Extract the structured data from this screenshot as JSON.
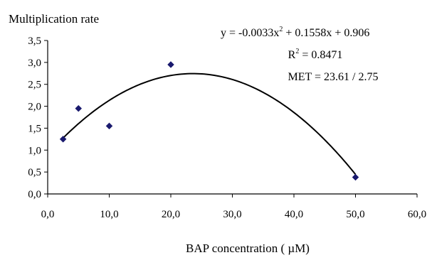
{
  "chart_data": {
    "type": "scatter",
    "ylabel": "Multiplication rate",
    "xlabel": "BAP concentration ( µM)",
    "xlim": [
      0,
      60
    ],
    "ylim": [
      0,
      3.5
    ],
    "x_ticks": [
      0,
      10,
      20,
      30,
      40,
      50,
      60
    ],
    "y_ticks": [
      0,
      0.5,
      1.0,
      1.5,
      2.0,
      2.5,
      3.0,
      3.5
    ],
    "x_tick_labels": [
      "0,0",
      "10,0",
      "20,0",
      "30,0",
      "40,0",
      "50,0",
      "60,0"
    ],
    "y_tick_labels": [
      "0,0",
      "0,5",
      "1,0",
      "1,5",
      "2,0",
      "2,5",
      "3,0",
      "3,5"
    ],
    "grid": false,
    "series": [
      {
        "marker": "diamond",
        "color": "#1a1a6e",
        "points": [
          {
            "x": 2.5,
            "y": 1.25
          },
          {
            "x": 5,
            "y": 1.95
          },
          {
            "x": 10,
            "y": 1.55
          },
          {
            "x": 20,
            "y": 2.95
          },
          {
            "x": 50,
            "y": 0.38
          }
        ]
      }
    ],
    "trendline": {
      "kind": "polynomial-2",
      "a": -0.0033,
      "b": 0.1558,
      "c": 0.906,
      "x_range": [
        2.5,
        50
      ],
      "color": "#000000"
    },
    "annotations": {
      "equation_prefix": "y = -0.0033x",
      "equation_exp": "2",
      "equation_suffix": " + 0.1558x + 0.906",
      "r2_prefix": "R",
      "r2_exp": "2",
      "r2_suffix": " = 0.8471",
      "met": "MET = 23.61 / 2.75"
    }
  }
}
